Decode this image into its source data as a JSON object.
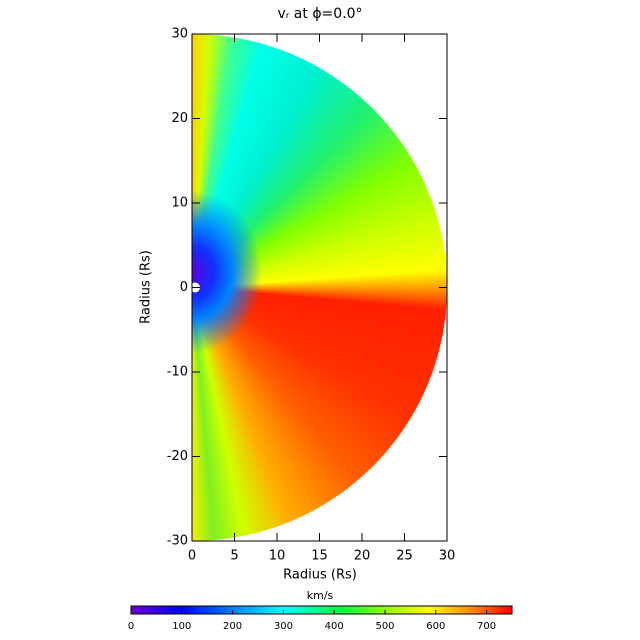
{
  "chart_data": {
    "type": "heatmap",
    "title": "vᵣ at ϕ=0.0°",
    "xlabel": "Radius (Rs)",
    "ylabel": "Radius (Rs)",
    "xlim": [
      0,
      30
    ],
    "ylim": [
      -30,
      30
    ],
    "xticks": [
      0,
      5,
      10,
      15,
      20,
      25,
      30
    ],
    "yticks": [
      -30,
      -20,
      -10,
      0,
      10,
      20,
      30
    ],
    "colorbar": {
      "label": "km/s",
      "lim": [
        0,
        750
      ],
      "ticks": [
        0,
        100,
        200,
        300,
        400,
        500,
        600,
        700
      ]
    }
  }
}
